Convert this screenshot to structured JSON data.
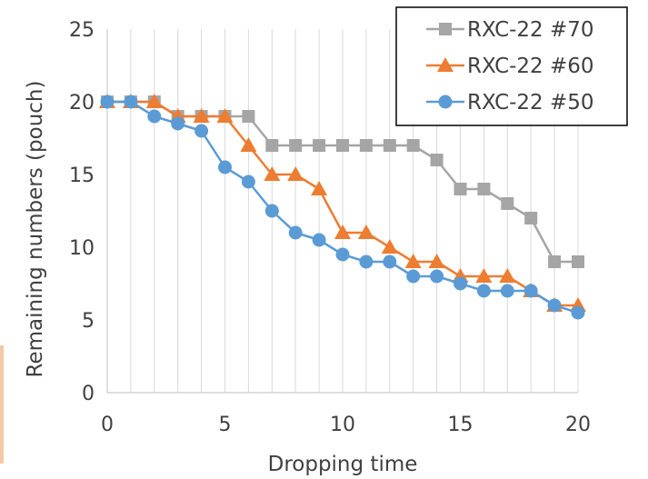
{
  "chart_data": {
    "type": "line",
    "title": "",
    "xlabel": "Dropping time",
    "ylabel": "Remaining numbers (pouch)",
    "xlim": [
      0,
      20
    ],
    "ylim": [
      0,
      25
    ],
    "xticks": [
      0,
      5,
      10,
      15,
      20
    ],
    "yticks": [
      0,
      5,
      10,
      15,
      20,
      25
    ],
    "grid": {
      "vertical": true,
      "horizontal": false
    },
    "legend_position": "top-right",
    "x": [
      0,
      1,
      2,
      3,
      4,
      5,
      6,
      7,
      8,
      9,
      10,
      11,
      12,
      13,
      14,
      15,
      16,
      17,
      18,
      19,
      20
    ],
    "series": [
      {
        "name": "RXC-22 #70",
        "marker": "square",
        "color": "#a5a5a5",
        "values": [
          20,
          20,
          20,
          19,
          19,
          19,
          19,
          17,
          17,
          17,
          17,
          17,
          17,
          17,
          16,
          14,
          14,
          13,
          12,
          9,
          9
        ]
      },
      {
        "name": "RXC-22 #60",
        "marker": "triangle",
        "color": "#ed7d31",
        "values": [
          20,
          20,
          20,
          19,
          19,
          19,
          17,
          15,
          15,
          14,
          11,
          11,
          10,
          9,
          9,
          8,
          8,
          8,
          7,
          6,
          6
        ]
      },
      {
        "name": "RXC-22 #50",
        "marker": "circle",
        "color": "#5b9bd5",
        "values": [
          20,
          20,
          19,
          18.5,
          18,
          15.5,
          14.5,
          12.5,
          11,
          10.5,
          9.5,
          9,
          9,
          8,
          8,
          7.5,
          7,
          7,
          7,
          6,
          5.5
        ]
      }
    ]
  }
}
